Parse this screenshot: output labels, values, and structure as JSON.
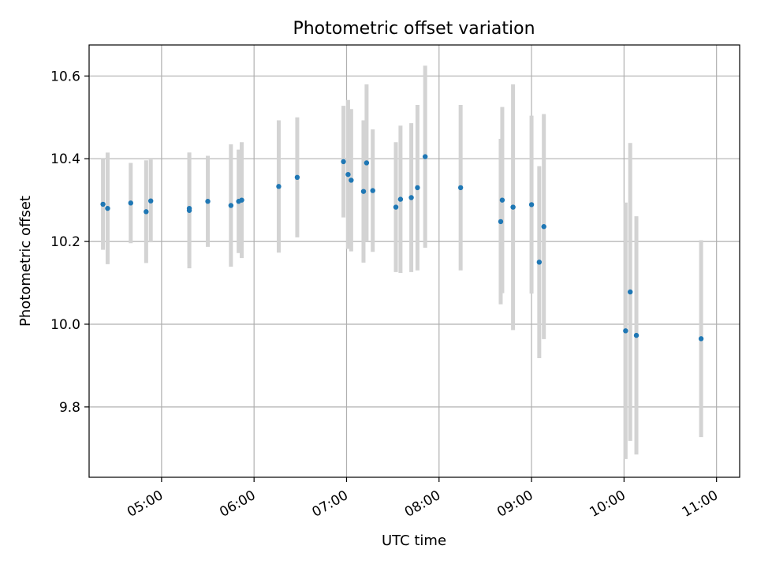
{
  "chart_data": {
    "type": "scatter",
    "title": "Photometric offset variation",
    "xlabel": "UTC time",
    "ylabel": "Photometric offset",
    "x_unit": "UTC time (HH:MM)",
    "xlim": [
      "04:13",
      "11:15"
    ],
    "ylim": [
      9.63,
      10.675
    ],
    "xticks": [
      "05:00",
      "06:00",
      "07:00",
      "08:00",
      "09:00",
      "10:00",
      "11:00"
    ],
    "yticks": [
      9.8,
      10.0,
      10.2,
      10.4,
      10.6
    ],
    "ytick_labels": [
      "9.8",
      "10.0",
      "10.2",
      "10.4",
      "10.6"
    ],
    "grid": true,
    "colors": {
      "points": "#1f77b4",
      "errorbars": "#d3d3d3",
      "grid": "#b0b0b0"
    },
    "points": [
      {
        "x": "04:22",
        "y": 10.29,
        "err": 0.11
      },
      {
        "x": "04:25",
        "y": 10.28,
        "err": 0.135
      },
      {
        "x": "04:40",
        "y": 10.293,
        "err": 0.097
      },
      {
        "x": "04:50",
        "y": 10.272,
        "err": 0.124
      },
      {
        "x": "04:53",
        "y": 10.298,
        "err": 0.1
      },
      {
        "x": "05:18",
        "y": 10.275,
        "err": 0.14
      },
      {
        "x": "05:18",
        "y": 10.28,
        "err": 0.135
      },
      {
        "x": "05:30",
        "y": 10.297,
        "err": 0.11
      },
      {
        "x": "05:45",
        "y": 10.287,
        "err": 0.148
      },
      {
        "x": "05:50",
        "y": 10.297,
        "err": 0.125
      },
      {
        "x": "05:52",
        "y": 10.3,
        "err": 0.14
      },
      {
        "x": "06:16",
        "y": 10.333,
        "err": 0.16
      },
      {
        "x": "06:28",
        "y": 10.355,
        "err": 0.145
      },
      {
        "x": "06:58",
        "y": 10.393,
        "err": 0.135
      },
      {
        "x": "07:01",
        "y": 10.362,
        "err": 0.18
      },
      {
        "x": "07:03",
        "y": 10.348,
        "err": 0.172
      },
      {
        "x": "07:11",
        "y": 10.321,
        "err": 0.172
      },
      {
        "x": "07:13",
        "y": 10.39,
        "err": 0.19
      },
      {
        "x": "07:17",
        "y": 10.323,
        "err": 0.148
      },
      {
        "x": "07:32",
        "y": 10.283,
        "err": 0.157
      },
      {
        "x": "07:35",
        "y": 10.302,
        "err": 0.178
      },
      {
        "x": "07:42",
        "y": 10.306,
        "err": 0.18
      },
      {
        "x": "07:46",
        "y": 10.33,
        "err": 0.2
      },
      {
        "x": "07:51",
        "y": 10.405,
        "err": 0.22
      },
      {
        "x": "08:14",
        "y": 10.33,
        "err": 0.2
      },
      {
        "x": "08:40",
        "y": 10.248,
        "err": 0.2
      },
      {
        "x": "08:41",
        "y": 10.3,
        "err": 0.225
      },
      {
        "x": "08:48",
        "y": 10.283,
        "err": 0.297
      },
      {
        "x": "09:00",
        "y": 10.289,
        "err": 0.215
      },
      {
        "x": "09:05",
        "y": 10.15,
        "err": 0.232
      },
      {
        "x": "09:08",
        "y": 10.236,
        "err": 0.272
      },
      {
        "x": "10:01",
        "y": 9.984,
        "err": 0.31
      },
      {
        "x": "10:04",
        "y": 10.078,
        "err": 0.36
      },
      {
        "x": "10:08",
        "y": 9.973,
        "err": 0.288
      },
      {
        "x": "10:50",
        "y": 9.965,
        "err": 0.238
      }
    ]
  }
}
